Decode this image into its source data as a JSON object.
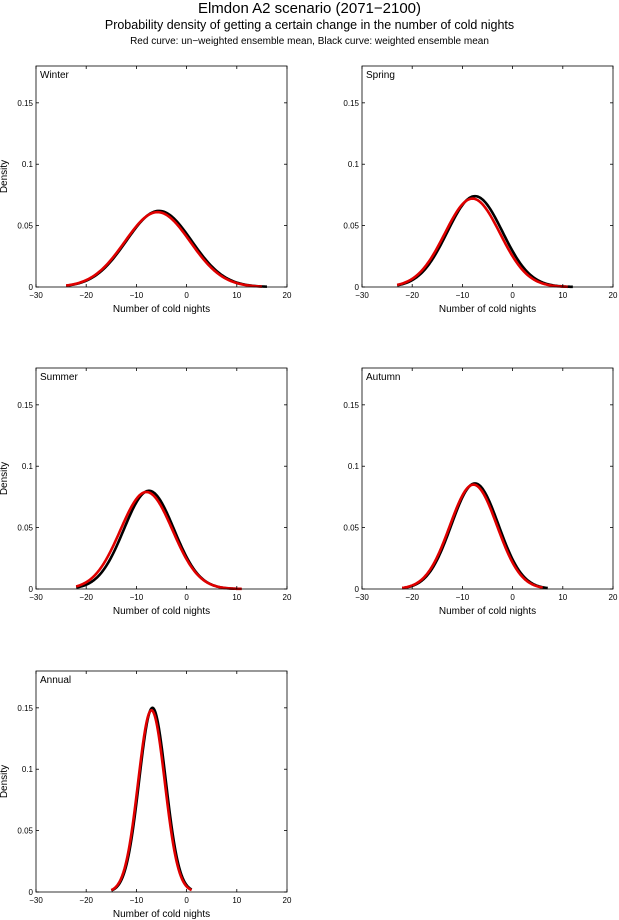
{
  "figure": {
    "title": "Elmdon A2 scenario (2071−2100)",
    "subtitle": "Probability density of getting a certain change in the number of cold nights",
    "caption": "Red curve: un−weighted ensemble mean, Black curve: weighted ensemble mean"
  },
  "colors": {
    "weighted": "#000000",
    "unweighted": "#e00000",
    "axis": "#000000"
  },
  "chart_data": [
    {
      "type": "line",
      "panel": "Winter",
      "xlabel": "Number of cold nights",
      "ylabel": "Density",
      "xlim": [
        -30,
        20
      ],
      "ylim": [
        0,
        0.18
      ],
      "xticks": [
        -30,
        -20,
        -10,
        0,
        10,
        20
      ],
      "yticks": [
        0,
        0.05,
        0.1,
        0.15
      ],
      "xtick_labels": [
        "−30",
        "−20",
        "−10",
        "0",
        "10",
        "20"
      ],
      "ytick_labels": [
        "0",
        "0.05",
        "0.1",
        "0.15"
      ],
      "series": [
        {
          "name": "weighted ensemble mean",
          "color": "#000000",
          "mean": -5.5,
          "sd": 6.5,
          "peak": 0.062,
          "range": [
            -24,
            16
          ]
        },
        {
          "name": "un-weighted ensemble mean",
          "color": "#e00000",
          "mean": -5.8,
          "sd": 6.5,
          "peak": 0.061,
          "range": [
            -24,
            15
          ]
        }
      ]
    },
    {
      "type": "line",
      "panel": "Spring",
      "xlabel": "Number of cold nights",
      "ylabel": "",
      "xlim": [
        -30,
        20
      ],
      "ylim": [
        0,
        0.18
      ],
      "xticks": [
        -30,
        -20,
        -10,
        0,
        10,
        20
      ],
      "yticks": [
        0,
        0.05,
        0.1,
        0.15
      ],
      "xtick_labels": [
        "−30",
        "−20",
        "−10",
        "0",
        "10",
        "20"
      ],
      "ytick_labels": [
        "0",
        "0.05",
        "0.1",
        "0.15"
      ],
      "series": [
        {
          "name": "weighted ensemble mean",
          "color": "#000000",
          "mean": -7.5,
          "sd": 5.5,
          "peak": 0.074,
          "range": [
            -23,
            12
          ]
        },
        {
          "name": "un-weighted ensemble mean",
          "color": "#e00000",
          "mean": -8.0,
          "sd": 5.5,
          "peak": 0.072,
          "range": [
            -23,
            11
          ]
        }
      ]
    },
    {
      "type": "line",
      "panel": "Summer",
      "xlabel": "Number of cold nights",
      "ylabel": "Density",
      "xlim": [
        -30,
        20
      ],
      "ylim": [
        0,
        0.18
      ],
      "xticks": [
        -30,
        -20,
        -10,
        0,
        10,
        20
      ],
      "yticks": [
        0,
        0.05,
        0.1,
        0.15
      ],
      "xtick_labels": [
        "−30",
        "−20",
        "−10",
        "0",
        "10",
        "20"
      ],
      "ytick_labels": [
        "0",
        "0.05",
        "0.1",
        "0.15"
      ],
      "series": [
        {
          "name": "weighted ensemble mean",
          "color": "#000000",
          "mean": -7.5,
          "sd": 5.0,
          "peak": 0.08,
          "range": [
            -22,
            10
          ]
        },
        {
          "name": "un-weighted ensemble mean",
          "color": "#e00000",
          "mean": -8.0,
          "sd": 5.2,
          "peak": 0.079,
          "range": [
            -22,
            11
          ]
        }
      ]
    },
    {
      "type": "line",
      "panel": "Autumn",
      "xlabel": "Number of cold nights",
      "ylabel": "",
      "xlim": [
        -30,
        20
      ],
      "ylim": [
        0,
        0.18
      ],
      "xticks": [
        -30,
        -20,
        -10,
        0,
        10,
        20
      ],
      "yticks": [
        0,
        0.05,
        0.1,
        0.15
      ],
      "xtick_labels": [
        "−30",
        "−20",
        "−10",
        "0",
        "10",
        "20"
      ],
      "ytick_labels": [
        "0",
        "0.05",
        "0.1",
        "0.15"
      ],
      "series": [
        {
          "name": "weighted ensemble mean",
          "color": "#000000",
          "mean": -7.5,
          "sd": 4.7,
          "peak": 0.086,
          "range": [
            -22,
            7
          ]
        },
        {
          "name": "un-weighted ensemble mean",
          "color": "#e00000",
          "mean": -7.8,
          "sd": 4.7,
          "peak": 0.085,
          "range": [
            -22,
            6
          ]
        }
      ]
    },
    {
      "type": "line",
      "panel": "Annual",
      "xlabel": "Number of cold nights",
      "ylabel": "Density",
      "xlim": [
        -30,
        20
      ],
      "ylim": [
        0,
        0.18
      ],
      "xticks": [
        -30,
        -20,
        -10,
        0,
        10,
        20
      ],
      "yticks": [
        0,
        0.05,
        0.1,
        0.15
      ],
      "xtick_labels": [
        "−30",
        "−20",
        "−10",
        "0",
        "10",
        "20"
      ],
      "ytick_labels": [
        "0",
        "0.05",
        "0.1",
        "0.15"
      ],
      "series": [
        {
          "name": "weighted ensemble mean",
          "color": "#000000",
          "mean": -6.8,
          "sd": 2.65,
          "peak": 0.15,
          "range": [
            -15,
            1
          ]
        },
        {
          "name": "un-weighted ensemble mean",
          "color": "#e00000",
          "mean": -7.0,
          "sd": 2.65,
          "peak": 0.148,
          "range": [
            -15,
            1
          ]
        }
      ]
    }
  ]
}
